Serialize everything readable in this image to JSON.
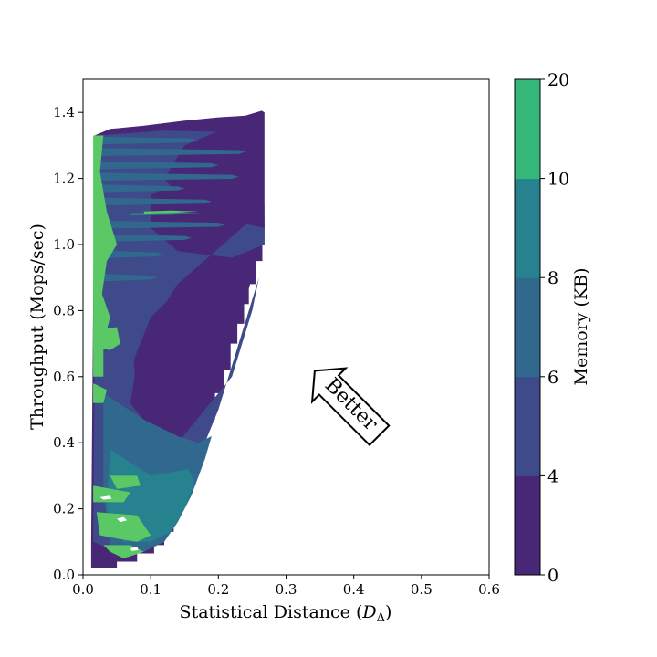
{
  "chart_data": {
    "type": "heatmap",
    "subtype": "filled-contour",
    "title": "",
    "xlabel": "Statistical Distance",
    "xlabel_math": "D",
    "xlabel_sub": "Δ",
    "ylabel": "Throughput (Mops/sec)",
    "xlim": [
      0.0,
      0.6
    ],
    "ylim": [
      0.0,
      1.5
    ],
    "xticks": [
      "0.0",
      "0.1",
      "0.2",
      "0.3",
      "0.4",
      "0.5",
      "0.6"
    ],
    "yticks": [
      "0.0",
      "0.2",
      "0.4",
      "0.6",
      "0.8",
      "1.0",
      "1.2",
      "1.4"
    ],
    "grid": false,
    "colorbar": {
      "label": "Memory (KB)",
      "levels": [
        0,
        4,
        6,
        8,
        10,
        20
      ],
      "tick_labels": [
        "0",
        "4",
        "6",
        "8",
        "10",
        "20"
      ],
      "colors": [
        "#482777",
        "#3e4a89",
        "#31688e",
        "#26828e",
        "#35b779",
        "#5ac864"
      ]
    },
    "colors": {
      "level_0_4": "#482777",
      "level_4_6": "#3e4a89",
      "level_6_8": "#31688e",
      "level_8_10": "#26828e",
      "level_10_20": "#5ac864"
    },
    "regions": [
      {
        "level": "0-4",
        "note": "upper-right of data envelope and central triangle",
        "polygon": [
          [
            0.11,
            1.33
          ],
          [
            0.27,
            1.4
          ],
          [
            0.27,
            1.02
          ],
          [
            0.24,
            0.9
          ],
          [
            0.1,
            0.45
          ],
          [
            0.06,
            0.55
          ],
          [
            0.06,
            1.0
          ]
        ]
      },
      {
        "level": "4-6",
        "polygon": [
          [
            0.03,
            1.3
          ],
          [
            0.11,
            1.35
          ],
          [
            0.23,
            1.05
          ],
          [
            0.24,
            0.95
          ],
          [
            0.12,
            0.82
          ],
          [
            0.07,
            0.55
          ],
          [
            0.05,
            0.35
          ],
          [
            0.03,
            0.6
          ]
        ]
      },
      {
        "level": "8-10",
        "polygon": [
          [
            0.04,
            0.55
          ],
          [
            0.13,
            0.45
          ],
          [
            0.16,
            0.33
          ],
          [
            0.12,
            0.12
          ],
          [
            0.08,
            0.12
          ],
          [
            0.03,
            0.25
          ]
        ]
      },
      {
        "level": "10-20",
        "polygon": [
          [
            0.015,
            1.33
          ],
          [
            0.03,
            1.3
          ],
          [
            0.04,
            0.85
          ],
          [
            0.03,
            0.35
          ],
          [
            0.07,
            0.15
          ],
          [
            0.09,
            0.07
          ],
          [
            0.02,
            0.05
          ]
        ]
      }
    ],
    "annotation": {
      "text": "Better",
      "arrow_direction": "up-left",
      "at": [
        0.39,
        0.52
      ]
    }
  }
}
